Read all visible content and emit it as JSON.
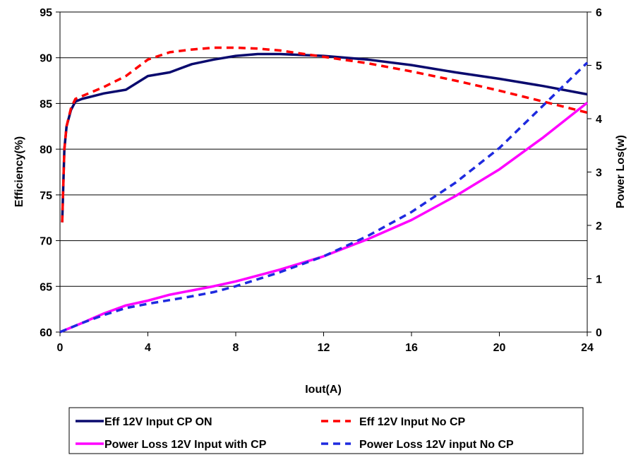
{
  "chart_data": {
    "type": "line",
    "xlabel": "Iout(A)",
    "ylabel_left": "Efficiency(%)",
    "ylabel_right": "Power Los(w)",
    "xlim": [
      0,
      24
    ],
    "ylim_left": [
      60,
      95
    ],
    "ylim_right": [
      0,
      6
    ],
    "x_ticks": [
      "0",
      "4",
      "8",
      "12",
      "16",
      "20",
      "24"
    ],
    "y_left_ticks": [
      "60",
      "65",
      "70",
      "75",
      "80",
      "85",
      "90",
      "95"
    ],
    "y_right_ticks": [
      "0",
      "1",
      "2",
      "3",
      "4",
      "5",
      "6"
    ],
    "grid": "horizontal",
    "legend_position": "bottom",
    "series": [
      {
        "name": "Eff 12V Input CP ON",
        "axis": "left",
        "color": "#0a0a6e",
        "style": "solid",
        "x": [
          0.1,
          0.2,
          0.3,
          0.5,
          0.7,
          1,
          2,
          3,
          4,
          5,
          6,
          7,
          8,
          9,
          10,
          12,
          14,
          16,
          18,
          20,
          22,
          24
        ],
        "y": [
          72,
          80,
          82.5,
          84.3,
          85.2,
          85.5,
          86.1,
          86.5,
          88,
          88.4,
          89.3,
          89.8,
          90.2,
          90.4,
          90.4,
          90.2,
          89.8,
          89.2,
          88.4,
          87.7,
          86.9,
          86
        ]
      },
      {
        "name": "Eff 12V Input No CP",
        "axis": "left",
        "color": "#ff0000",
        "style": "dashed",
        "x": [
          0.1,
          0.2,
          0.3,
          0.5,
          0.7,
          1,
          2,
          3,
          4,
          5,
          6,
          7,
          8,
          9,
          10,
          12,
          14,
          16,
          18,
          20,
          22,
          24
        ],
        "y": [
          72,
          80,
          82.5,
          84.5,
          85.5,
          85.8,
          86.8,
          88,
          89.8,
          90.6,
          90.9,
          91.1,
          91.1,
          91,
          90.8,
          90.1,
          89.4,
          88.5,
          87.5,
          86.4,
          85.2,
          84
        ]
      },
      {
        "name": "Power Loss 12V Input with CP",
        "axis": "right",
        "color": "#ff00ff",
        "style": "solid",
        "x": [
          0,
          1,
          2,
          3,
          4,
          5,
          6,
          7,
          8,
          10,
          12,
          14,
          16,
          18,
          20,
          22,
          24
        ],
        "y": [
          0,
          0.17,
          0.35,
          0.5,
          0.59,
          0.7,
          0.78,
          0.86,
          0.95,
          1.17,
          1.42,
          1.74,
          2.1,
          2.55,
          3.05,
          3.65,
          4.3
        ]
      },
      {
        "name": "Power Loss 12V input No CP",
        "axis": "right",
        "color": "#1e2adf",
        "style": "dashed",
        "x": [
          0,
          1,
          2,
          3,
          4,
          5,
          6,
          7,
          8,
          10,
          12,
          14,
          16,
          18,
          20,
          22,
          24
        ],
        "y": [
          0,
          0.17,
          0.32,
          0.45,
          0.53,
          0.6,
          0.67,
          0.75,
          0.86,
          1.12,
          1.42,
          1.8,
          2.25,
          2.8,
          3.45,
          4.25,
          5.05
        ]
      }
    ]
  }
}
